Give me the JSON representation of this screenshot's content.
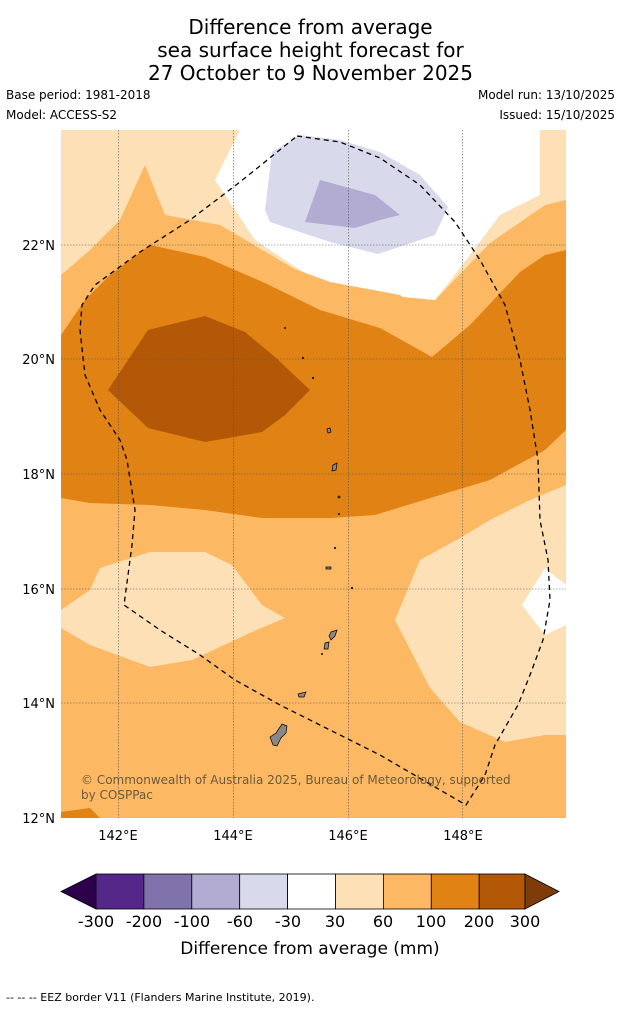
{
  "title_lines": [
    "Difference from average",
    "sea surface height forecast for",
    "27 October to 9 November 2025"
  ],
  "meta": {
    "base_period": "Base period: 1981-2018",
    "model": "Model: ACCESS-S2",
    "model_run": "Model run: 13/10/2025",
    "issued": "Issued: 15/10/2025"
  },
  "map": {
    "lat_labels": [
      "22°N",
      "20°N",
      "18°N",
      "16°N",
      "14°N",
      "12°N"
    ],
    "lon_labels": [
      "142°E",
      "144°E",
      "146°E",
      "148°E"
    ],
    "copyright_lines": [
      "© Commonwealth of Australia 2025, Bureau of Meteorology, supported",
      "by COSPPac"
    ]
  },
  "legend": {
    "tick_labels": [
      "-300",
      "-200",
      "-100",
      "-60",
      "-30",
      "30",
      "60",
      "100",
      "200",
      "300"
    ],
    "title": "Difference from average (mm)",
    "colors": {
      "below_-300": "#2d004b",
      "-300_-200": "#542788",
      "-200_-100": "#8073ac",
      "-100_-60": "#b2abd2",
      "-60_-30": "#d8daeb",
      "-30_30": "#ffffff",
      "30_60": "#fee0b6",
      "60_100": "#fdb863",
      "100_200": "#e08214",
      "200_300": "#b35806",
      "above_300": "#7f3b08"
    }
  },
  "footer": "--  --  -- EEZ border V11 (Flanders Marine Institute, 2019)."
}
